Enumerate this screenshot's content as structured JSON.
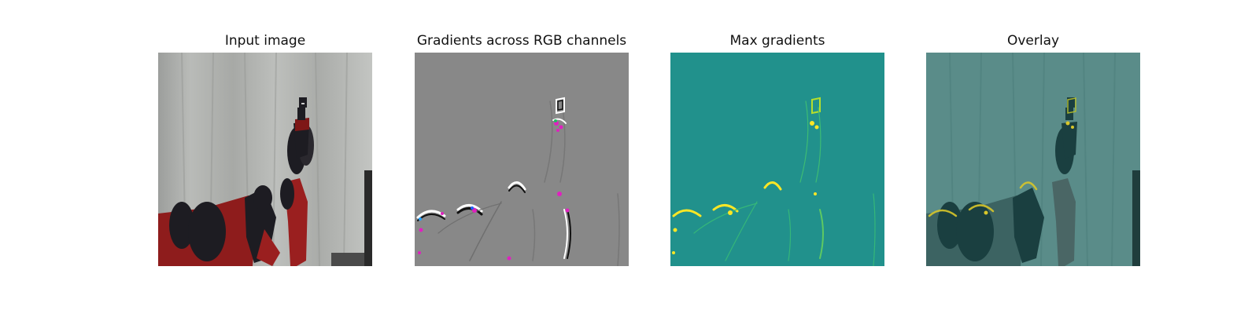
{
  "panels": [
    {
      "title": "Input image"
    },
    {
      "title": "Gradients across RGB channels"
    },
    {
      "title": "Max gradients"
    },
    {
      "title": "Overlay"
    }
  ],
  "colors": {
    "curtain": "#b3b5b2",
    "robot_red": "#8c1a1a",
    "robot_dark": "#1d1c22",
    "gradient_gray": "#888888",
    "viridis_teal": "#21918c",
    "viridis_yellow": "#fde725",
    "overlay_tint": "#4a8a86"
  }
}
